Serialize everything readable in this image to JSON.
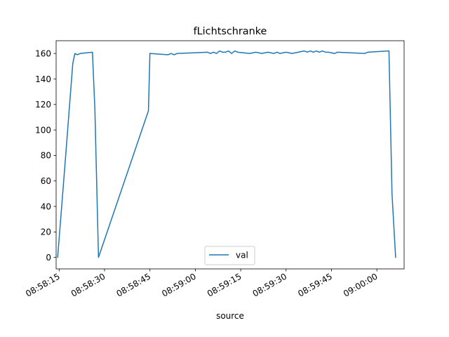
{
  "chart_data": {
    "type": "line",
    "title": "fLichtschranke",
    "xlabel": "source",
    "ylabel": "",
    "ylim": [
      -9,
      170
    ],
    "xlim": [
      "08:58:14",
      "09:00:09"
    ],
    "grid": false,
    "legend_placement": "bottom-center",
    "colors": {
      "series": "#1f77b4",
      "axes": "#000000",
      "background": "#ffffff"
    },
    "x_ticks": [
      "08:58:15",
      "08:58:30",
      "08:58:45",
      "08:59:00",
      "08:59:15",
      "08:59:30",
      "08:59:45",
      "09:00:00"
    ],
    "y_ticks": [
      0,
      20,
      40,
      60,
      80,
      100,
      120,
      140,
      160
    ],
    "series": [
      {
        "name": "val",
        "x": [
          "08:58:14.5",
          "08:58:17",
          "08:58:19.5",
          "08:58:20.2",
          "08:58:21",
          "08:58:22",
          "08:58:26",
          "08:58:26.8",
          "08:58:28",
          "08:58:44.5",
          "08:58:45",
          "08:58:51",
          "08:58:52",
          "08:58:53",
          "08:58:54",
          "08:59:04",
          "08:59:05",
          "08:59:06",
          "08:59:07",
          "08:59:08",
          "08:59:09",
          "08:59:10",
          "08:59:11",
          "08:59:12",
          "08:59:13",
          "08:59:14",
          "08:59:18",
          "08:59:20",
          "08:59:22",
          "08:59:24",
          "08:59:26",
          "08:59:27",
          "08:59:28",
          "08:59:30",
          "08:59:32",
          "08:59:34",
          "08:59:36",
          "08:59:37",
          "08:59:38",
          "08:59:39",
          "08:59:40",
          "08:59:41",
          "08:59:42",
          "08:59:43",
          "08:59:44",
          "08:59:46",
          "08:59:47",
          "08:59:56",
          "08:59:57",
          "09:00:04",
          "09:00:05",
          "09:00:06.2"
        ],
        "values": [
          0,
          75,
          152,
          160,
          159,
          160,
          161,
          117,
          0,
          115,
          160,
          159,
          160,
          159,
          160,
          161,
          160,
          161,
          160,
          162,
          161,
          161,
          162,
          160,
          162,
          161,
          160,
          161,
          160,
          161,
          160,
          161,
          160,
          161,
          160,
          161,
          162,
          161,
          162,
          161,
          162,
          161,
          162,
          161,
          161,
          160,
          161,
          160,
          161,
          162,
          50,
          0
        ]
      }
    ]
  }
}
